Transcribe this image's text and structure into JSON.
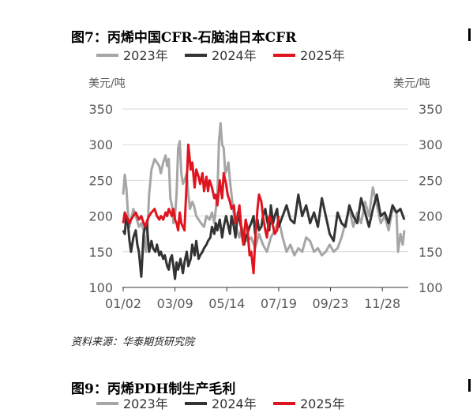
{
  "figure1": {
    "title": "图7：丙烯中国CFR-石脑油日本CFR",
    "source": "资料来源：华泰期货研究院"
  },
  "figure2": {
    "title": "图9：丙烯PDH制生产毛利",
    "legend": [
      "2023年",
      "2024年",
      "2025年"
    ]
  },
  "chart_data": {
    "type": "line",
    "title": "",
    "y_unit_left": "美元/吨",
    "y_unit_right": "美元/吨",
    "ylim": [
      100,
      350
    ],
    "yticks": [
      100,
      150,
      200,
      250,
      300,
      350
    ],
    "xlim_day": [
      1,
      365
    ],
    "xtick_labels": [
      "01/02",
      "03/09",
      "05/14",
      "07/19",
      "09/23",
      "11/28"
    ],
    "xtick_days": [
      2,
      68,
      134,
      200,
      266,
      332
    ],
    "grid": true,
    "legend_position": "top",
    "colors": {
      "2023年": "#a6a6a6",
      "2024年": "#333333",
      "2025年": "#e0141e",
      "grid": "#d9d9d9",
      "axis_text": "#595959"
    },
    "series": [
      {
        "name": "2023年",
        "x_day": [
          2,
          4,
          6,
          8,
          10,
          12,
          15,
          18,
          22,
          25,
          28,
          31,
          33,
          35,
          38,
          42,
          45,
          48,
          50,
          53,
          56,
          58,
          60,
          62,
          64,
          66,
          68,
          70,
          72,
          74,
          76,
          78,
          80,
          83,
          85,
          87,
          90,
          92,
          95,
          98,
          101,
          105,
          108,
          112,
          115,
          118,
          120,
          122,
          124,
          126,
          128,
          130,
          132,
          134,
          136,
          138,
          140,
          142,
          144,
          147,
          150,
          153,
          156,
          160,
          165,
          170,
          175,
          180,
          185,
          190,
          195,
          200,
          205,
          210,
          215,
          220,
          225,
          230,
          235,
          240,
          245,
          250,
          255,
          260,
          265,
          270,
          275,
          280,
          285,
          290,
          295,
          300,
          305,
          310,
          315,
          320,
          325,
          330,
          335,
          340,
          345,
          350,
          352,
          355,
          358,
          360
        ],
        "values": [
          230,
          258,
          240,
          205,
          185,
          195,
          210,
          200,
          185,
          190,
          180,
          150,
          180,
          230,
          265,
          280,
          275,
          270,
          260,
          275,
          285,
          270,
          280,
          225,
          215,
          190,
          200,
          230,
          295,
          305,
          260,
          245,
          250,
          260,
          230,
          210,
          220,
          215,
          200,
          195,
          190,
          185,
          200,
          195,
          205,
          190,
          210,
          230,
          305,
          330,
          300,
          295,
          260,
          265,
          275,
          250,
          230,
          210,
          195,
          180,
          170,
          185,
          175,
          165,
          170,
          155,
          175,
          160,
          150,
          170,
          180,
          195,
          170,
          150,
          160,
          145,
          155,
          150,
          170,
          165,
          150,
          155,
          145,
          150,
          160,
          150,
          155,
          170,
          190,
          210,
          185,
          205,
          190,
          220,
          200,
          240,
          215,
          190,
          200,
          180,
          210,
          205,
          150,
          175,
          160,
          180
        ]
      },
      {
        "name": "2024年",
        "x_day": [
          2,
          4,
          6,
          8,
          10,
          12,
          15,
          18,
          20,
          22,
          25,
          28,
          30,
          32,
          35,
          38,
          40,
          43,
          45,
          48,
          50,
          53,
          55,
          58,
          60,
          62,
          64,
          66,
          68,
          70,
          72,
          75,
          78,
          80,
          83,
          85,
          88,
          90,
          93,
          95,
          98,
          100,
          103,
          105,
          108,
          110,
          113,
          115,
          118,
          120,
          122,
          125,
          128,
          130,
          133,
          135,
          138,
          140,
          143,
          145,
          148,
          150,
          153,
          156,
          158,
          160,
          163,
          165,
          168,
          170,
          173,
          175,
          178,
          180,
          183,
          185,
          188,
          190,
          193,
          195,
          198,
          200,
          205,
          210,
          215,
          220,
          225,
          230,
          235,
          240,
          245,
          250,
          255,
          260,
          265,
          270,
          275,
          280,
          285,
          290,
          295,
          300,
          305,
          310,
          315,
          320,
          325,
          330,
          335,
          340,
          345,
          350,
          355,
          360
        ],
        "values": [
          180,
          175,
          200,
          190,
          165,
          150,
          170,
          180,
          160,
          150,
          115,
          175,
          185,
          190,
          150,
          165,
          155,
          150,
          160,
          145,
          150,
          140,
          145,
          130,
          125,
          140,
          145,
          130,
          112,
          135,
          125,
          140,
          120,
          135,
          150,
          130,
          140,
          160,
          145,
          165,
          140,
          145,
          150,
          155,
          160,
          165,
          170,
          185,
          175,
          190,
          180,
          195,
          170,
          185,
          200,
          190,
          175,
          200,
          185,
          170,
          205,
          195,
          180,
          160,
          170,
          175,
          185,
          190,
          200,
          175,
          195,
          180,
          185,
          200,
          210,
          195,
          180,
          215,
          190,
          200,
          210,
          185,
          200,
          215,
          195,
          190,
          230,
          200,
          215,
          190,
          205,
          185,
          225,
          200,
          175,
          165,
          205,
          190,
          185,
          215,
          200,
          190,
          225,
          205,
          185,
          210,
          230,
          200,
          205,
          190,
          215,
          205,
          210,
          195
        ]
      },
      {
        "name": "2025年",
        "x_day": [
          2,
          4,
          6,
          8,
          10,
          12,
          15,
          18,
          22,
          25,
          28,
          30,
          33,
          35,
          38,
          42,
          45,
          48,
          50,
          53,
          56,
          58,
          60,
          62,
          64,
          66,
          68,
          70,
          72,
          74,
          76,
          78,
          80,
          83,
          85,
          88,
          90,
          93,
          95,
          98,
          100,
          103,
          105,
          108,
          110,
          112,
          115,
          118,
          120,
          122,
          125,
          128,
          130,
          133,
          135,
          138,
          140,
          143,
          145,
          148,
          150,
          153,
          155,
          158,
          160,
          163,
          165,
          168,
          170,
          173,
          175,
          178,
          180,
          183,
          185,
          188,
          190,
          193,
          195,
          198,
          200
        ],
        "values": [
          190,
          205,
          200,
          195,
          190,
          195,
          200,
          205,
          195,
          200,
          190,
          185,
          195,
          200,
          205,
          210,
          200,
          195,
          200,
          195,
          205,
          200,
          210,
          205,
          200,
          210,
          195,
          190,
          180,
          205,
          190,
          185,
          180,
          250,
          300,
          265,
          275,
          240,
          265,
          255,
          245,
          260,
          235,
          255,
          235,
          250,
          240,
          225,
          230,
          215,
          250,
          225,
          260,
          245,
          230,
          220,
          210,
          215,
          190,
          200,
          215,
          175,
          160,
          195,
          185,
          145,
          150,
          120,
          165,
          210,
          230,
          220,
          200,
          180,
          170,
          200,
          195,
          185,
          175,
          180,
          200
        ]
      }
    ]
  }
}
